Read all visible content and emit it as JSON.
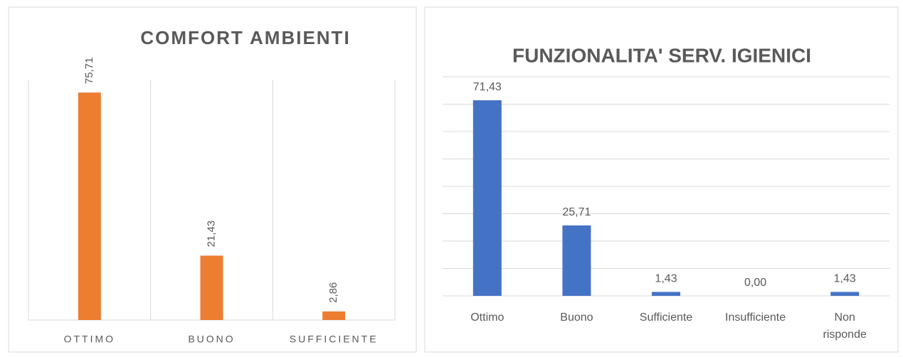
{
  "chart_data": [
    {
      "type": "bar",
      "title": "COMFORT AMBIENTI",
      "categories": [
        "OTTIMO",
        "BUONO",
        "SUFFICIENTE"
      ],
      "values": [
        75.71,
        21.43,
        2.86
      ],
      "value_labels": [
        "75,71",
        "21,43",
        "2,86"
      ],
      "color": "#ed7d31",
      "ylim": [
        0,
        80
      ]
    },
    {
      "type": "bar",
      "title": "FUNZIONALITA' SERV. IGIENICI",
      "categories": [
        "Ottimo",
        "Buono",
        "Sufficiente",
        "Insufficiente",
        "Non risponde"
      ],
      "values": [
        71.43,
        25.71,
        1.43,
        0,
        1.43
      ],
      "value_labels": [
        "71,43",
        "25,71",
        "1,43",
        "0,00",
        "1,43"
      ],
      "color": "#4472c4",
      "ylim": [
        0,
        80
      ],
      "yticks": [
        0,
        10,
        20,
        30,
        40,
        50,
        60,
        70,
        80
      ],
      "grid": true
    }
  ]
}
